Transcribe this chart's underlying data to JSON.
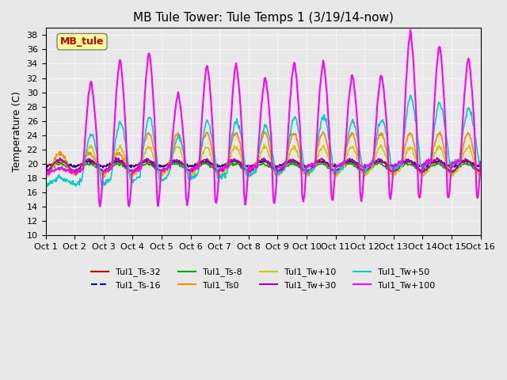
{
  "title": "MB Tule Tower: Tule Temps 1 (3/19/14-now)",
  "ylabel": "Temperature (C)",
  "ylim": [
    10,
    39
  ],
  "yticks": [
    10,
    12,
    14,
    16,
    18,
    20,
    22,
    24,
    26,
    28,
    30,
    32,
    34,
    36,
    38
  ],
  "xlabel_dates": [
    "Oct 1",
    "Oct 2",
    "Oct 3",
    "Oct 4",
    "Oct 5",
    "Oct 6",
    "Oct 7",
    "Oct 8",
    "Oct 9",
    "Oct 10",
    "Oct 11",
    "Oct 12",
    "Oct 13",
    "Oct 14",
    "Oct 15",
    "Oct 16"
  ],
  "background_color": "#e8e8e8",
  "plot_bg_color": "#e8e8e8",
  "legend_box_color": "#ffff99",
  "legend_box_text": "MB_tule",
  "legend_box_text_color": "#cc0000",
  "series": [
    {
      "name": "Tul1_Ts-32",
      "color": "#cc0000",
      "lw": 1.2,
      "ls": "-"
    },
    {
      "name": "Tul1_Ts-16",
      "color": "#0000cc",
      "lw": 1.2,
      "ls": "--"
    },
    {
      "name": "Tul1_Ts-8",
      "color": "#00aa00",
      "lw": 1.2,
      "ls": "-"
    },
    {
      "name": "Tul1_Ts0",
      "color": "#ff8800",
      "lw": 1.2,
      "ls": "-"
    },
    {
      "name": "Tul1_Tw+10",
      "color": "#cccc00",
      "lw": 1.2,
      "ls": "-"
    },
    {
      "name": "Tul1_Tw+30",
      "color": "#aa00aa",
      "lw": 1.2,
      "ls": "-"
    },
    {
      "name": "Tul1_Tw+50",
      "color": "#00cccc",
      "lw": 1.2,
      "ls": "-"
    },
    {
      "name": "Tul1_Tw+100",
      "color": "#ff00ff",
      "lw": 1.5,
      "ls": "-"
    }
  ],
  "num_days": 15,
  "points_per_day": 48
}
